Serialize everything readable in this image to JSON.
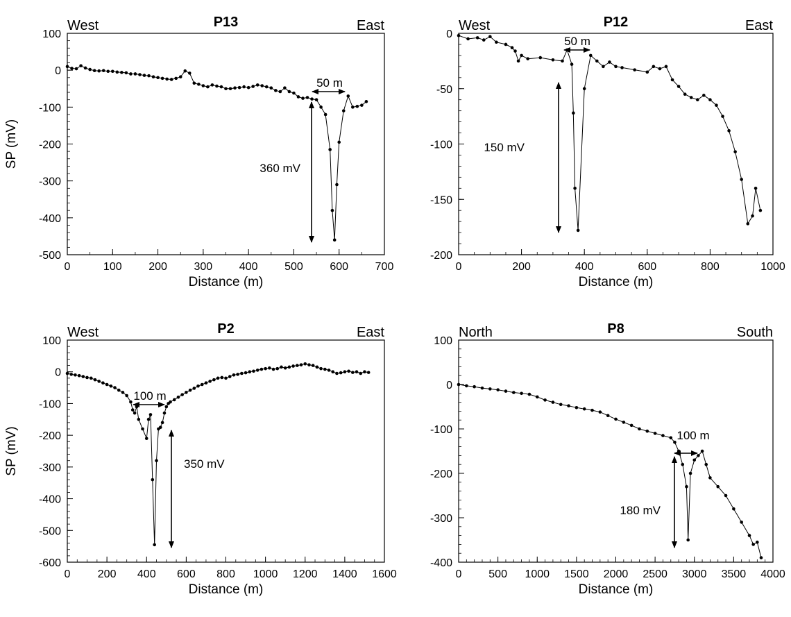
{
  "chart_data": [
    {
      "type": "line",
      "title": "P13",
      "left_label": "West",
      "right_label": "East",
      "xlabel": "Distance (m)",
      "ylabel": "SP (mV)",
      "xlim": [
        0,
        700
      ],
      "ylim": [
        -500,
        100
      ],
      "xticks": [
        0,
        100,
        200,
        300,
        400,
        500,
        600,
        700
      ],
      "yticks": [
        100,
        0,
        -100,
        -200,
        -300,
        -400,
        -500
      ],
      "series": [
        {
          "x": [
            0,
            10,
            20,
            30,
            40,
            50,
            60,
            70,
            80,
            90,
            100,
            110,
            120,
            130,
            140,
            150,
            160,
            170,
            180,
            190,
            200,
            210,
            220,
            230,
            240,
            250,
            260,
            270,
            280,
            290,
            300,
            310,
            320,
            330,
            340,
            350,
            360,
            370,
            380,
            390,
            400,
            410,
            420,
            430,
            440,
            450,
            460,
            470,
            480,
            490,
            500,
            510,
            520,
            530,
            540,
            550,
            560,
            570,
            580,
            585,
            590,
            595,
            600,
            610,
            620,
            630,
            640,
            650,
            660
          ],
          "y": [
            10,
            5,
            4,
            12,
            6,
            2,
            -1,
            -2,
            -1,
            -3,
            -3,
            -5,
            -6,
            -7,
            -10,
            -10,
            -12,
            -14,
            -15,
            -18,
            -20,
            -22,
            -24,
            -25,
            -22,
            -18,
            -2,
            -8,
            -35,
            -38,
            -42,
            -45,
            -40,
            -43,
            -45,
            -50,
            -50,
            -48,
            -47,
            -45,
            -47,
            -44,
            -40,
            -42,
            -45,
            -48,
            -55,
            -58,
            -48,
            -58,
            -62,
            -72,
            -76,
            -74,
            -78,
            -80,
            -100,
            -120,
            -215,
            -380,
            -460,
            -310,
            -195,
            -110,
            -70,
            -100,
            -98,
            -95,
            -85
          ]
        }
      ],
      "annotations": [
        "50 m",
        "360 mV"
      ]
    },
    {
      "type": "line",
      "title": "P12",
      "left_label": "West",
      "right_label": "East",
      "xlabel": "Distance (m)",
      "ylabel": "",
      "xlim": [
        0,
        1000
      ],
      "ylim": [
        -200,
        0
      ],
      "xticks": [
        0,
        200,
        400,
        600,
        800,
        1000
      ],
      "yticks": [
        0,
        -50,
        -100,
        -150,
        -200
      ],
      "series": [
        {
          "x": [
            0,
            30,
            60,
            80,
            100,
            120,
            150,
            170,
            180,
            190,
            200,
            220,
            260,
            300,
            330,
            345,
            360,
            365,
            370,
            380,
            400,
            420,
            440,
            460,
            480,
            500,
            520,
            560,
            600,
            620,
            640,
            660,
            680,
            700,
            720,
            740,
            760,
            780,
            800,
            820,
            840,
            860,
            880,
            900,
            920,
            935,
            945,
            960
          ],
          "y": [
            -2,
            -5,
            -4,
            -6,
            -3,
            -8,
            -10,
            -13,
            -16,
            -25,
            -20,
            -23,
            -22,
            -24,
            -25,
            -15,
            -28,
            -72,
            -140,
            -178,
            -50,
            -20,
            -25,
            -30,
            -26,
            -30,
            -31,
            -33,
            -35,
            -30,
            -32,
            -30,
            -42,
            -48,
            -55,
            -58,
            -60,
            -56,
            -60,
            -65,
            -75,
            -88,
            -107,
            -132,
            -172,
            -165,
            -140,
            -160
          ]
        }
      ],
      "annotations": [
        "50 m",
        "150 mV"
      ]
    },
    {
      "type": "line",
      "title": "P2",
      "left_label": "West",
      "right_label": "East",
      "xlabel": "Distance (m)",
      "ylabel": "SP (mV)",
      "xlim": [
        0,
        1600
      ],
      "ylim": [
        -600,
        100
      ],
      "xticks": [
        0,
        200,
        400,
        600,
        800,
        1000,
        1200,
        1400,
        1600
      ],
      "yticks": [
        100,
        0,
        -100,
        -200,
        -300,
        -400,
        -500,
        -600
      ],
      "series": [
        {
          "x": [
            0,
            20,
            40,
            60,
            80,
            100,
            120,
            140,
            160,
            180,
            200,
            220,
            240,
            260,
            280,
            300,
            320,
            330,
            340,
            350,
            360,
            380,
            400,
            410,
            420,
            430,
            440,
            450,
            460,
            470,
            480,
            490,
            500,
            510,
            520,
            540,
            560,
            580,
            600,
            620,
            640,
            660,
            680,
            700,
            720,
            740,
            760,
            780,
            800,
            820,
            840,
            860,
            880,
            900,
            920,
            940,
            960,
            980,
            1000,
            1020,
            1040,
            1060,
            1080,
            1100,
            1120,
            1140,
            1160,
            1180,
            1200,
            1220,
            1240,
            1260,
            1280,
            1300,
            1320,
            1340,
            1360,
            1380,
            1400,
            1420,
            1440,
            1460,
            1480,
            1500,
            1520
          ],
          "y": [
            -5,
            -8,
            -10,
            -12,
            -15,
            -18,
            -20,
            -25,
            -30,
            -35,
            -40,
            -45,
            -50,
            -58,
            -65,
            -75,
            -95,
            -120,
            -130,
            -110,
            -150,
            -180,
            -210,
            -150,
            -135,
            -340,
            -545,
            -280,
            -180,
            -175,
            -160,
            -130,
            -110,
            -100,
            -95,
            -88,
            -80,
            -72,
            -65,
            -58,
            -52,
            -45,
            -40,
            -35,
            -30,
            -25,
            -20,
            -18,
            -20,
            -15,
            -10,
            -8,
            -5,
            -3,
            0,
            2,
            5,
            8,
            10,
            12,
            8,
            10,
            15,
            12,
            15,
            18,
            20,
            22,
            25,
            22,
            20,
            15,
            10,
            8,
            5,
            0,
            -5,
            -3,
            0,
            2,
            -2,
            0,
            -5,
            0,
            -2
          ]
        }
      ],
      "annotations": [
        "100 m",
        "350 mV"
      ]
    },
    {
      "type": "line",
      "title": "P8",
      "left_label": "North",
      "right_label": "South",
      "xlabel": "Distance (m)",
      "ylabel": "",
      "xlim": [
        0,
        4000
      ],
      "ylim": [
        -400,
        100
      ],
      "xticks": [
        0,
        500,
        1000,
        1500,
        2000,
        2500,
        3000,
        3500,
        4000
      ],
      "yticks": [
        100,
        0,
        -100,
        -200,
        -300,
        -400
      ],
      "series": [
        {
          "x": [
            0,
            100,
            200,
            300,
            400,
            500,
            600,
            700,
            800,
            900,
            1000,
            1100,
            1200,
            1300,
            1400,
            1500,
            1600,
            1700,
            1800,
            1900,
            2000,
            2100,
            2200,
            2300,
            2400,
            2500,
            2600,
            2700,
            2750,
            2800,
            2850,
            2900,
            2920,
            2950,
            3000,
            3050,
            3100,
            3150,
            3200,
            3300,
            3400,
            3500,
            3600,
            3700,
            3750,
            3800,
            3850
          ],
          "y": [
            0,
            -3,
            -5,
            -8,
            -10,
            -12,
            -15,
            -18,
            -20,
            -22,
            -28,
            -35,
            -40,
            -45,
            -48,
            -52,
            -55,
            -58,
            -62,
            -70,
            -78,
            -85,
            -92,
            -100,
            -105,
            -110,
            -115,
            -120,
            -130,
            -150,
            -180,
            -230,
            -350,
            -200,
            -170,
            -160,
            -150,
            -180,
            -210,
            -230,
            -250,
            -280,
            -310,
            -340,
            -360,
            -355,
            -390
          ]
        }
      ],
      "annotations": [
        "100 m",
        "180 mV"
      ]
    }
  ]
}
